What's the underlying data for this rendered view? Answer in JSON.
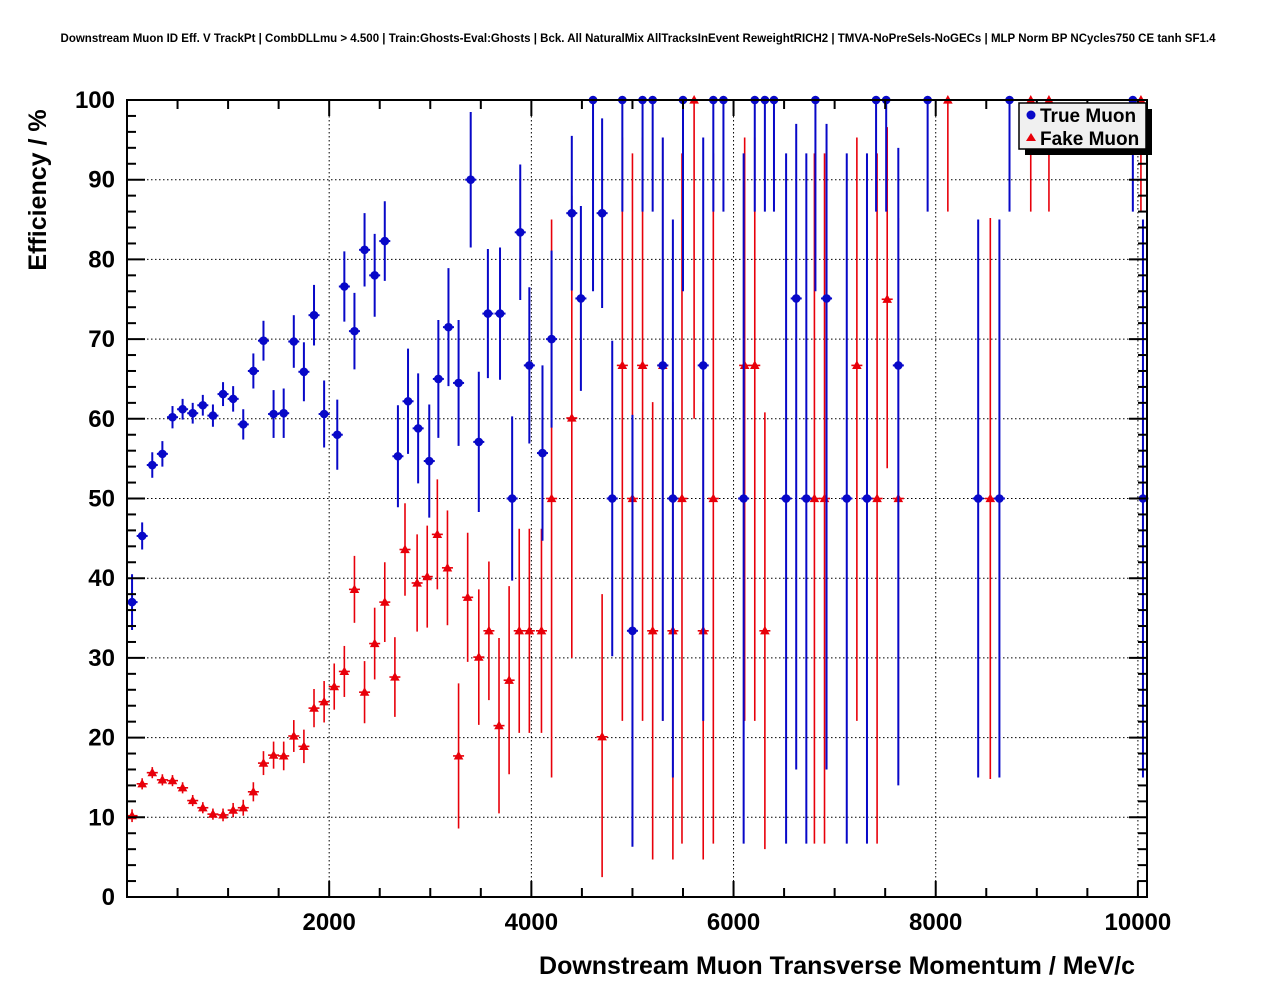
{
  "title": "Downstream Muon ID Eff. V TrackPt | CombDLLmu > 4.500 | Train:Ghosts-Eval:Ghosts | Bck. All NaturalMix AllTracksInEvent ReweightRICH2 | TMVA-NoPreSels-NoGECs | MLP Norm BP NCycles750 CE tanh SF1.4",
  "legend": {
    "items": [
      {
        "label": "True Muon",
        "marker": "circle",
        "color": "#0808c8"
      },
      {
        "label": "Fake Muon",
        "marker": "triangle",
        "color": "#e8000a"
      }
    ]
  },
  "colors": {
    "true_muon": "#0808c8",
    "fake_muon": "#e8000a",
    "axis": "#000000",
    "grid": "#000000",
    "legend_fill": "#f0f0f0",
    "legend_shadow": "#000000",
    "background": "#ffffff"
  },
  "chart_data": {
    "type": "scatter",
    "title": "Downstream Muon ID Eff. V TrackPt | CombDLLmu > 4.500 | Train:Ghosts-Eval:Ghosts | Bck. All NaturalMix AllTracksInEvent ReweightRICH2 | TMVA-NoPreSels-NoGECs | MLP Norm BP NCycles750 CE tanh SF1.4",
    "xlabel": "Downstream Muon Transverse Momentum / MeV/c",
    "ylabel": "Efficiency / %",
    "xlim": [
      0,
      10090
    ],
    "ylim": [
      0,
      100
    ],
    "x_ticks": [
      2000,
      4000,
      6000,
      8000,
      10000
    ],
    "x_minor_step": 500,
    "y_ticks": [
      0,
      10,
      20,
      30,
      40,
      50,
      60,
      70,
      80,
      90,
      100
    ],
    "y_minor_step": 2,
    "grid": true,
    "legend_position": "top-right",
    "series": [
      {
        "name": "Fake Muon",
        "marker": "triangle",
        "color": "#e8000a",
        "points_format": [
          "pt_MeV",
          "efficiency_pct",
          "err_low_pct",
          "err_high_pct"
        ],
        "points": [
          [
            50,
            10.2,
            9.4,
            11.0
          ],
          [
            150,
            14.2,
            13.5,
            14.9
          ],
          [
            250,
            15.6,
            14.9,
            16.3
          ],
          [
            350,
            14.7,
            14.0,
            15.4
          ],
          [
            450,
            14.6,
            13.9,
            15.3
          ],
          [
            550,
            13.7,
            13.0,
            14.4
          ],
          [
            650,
            12.1,
            11.4,
            12.8
          ],
          [
            750,
            11.2,
            10.5,
            11.9
          ],
          [
            850,
            10.4,
            9.7,
            11.1
          ],
          [
            950,
            10.3,
            9.5,
            11.1
          ],
          [
            1050,
            10.9,
            10.0,
            11.8
          ],
          [
            1150,
            11.2,
            10.2,
            12.2
          ],
          [
            1250,
            13.2,
            12.0,
            14.4
          ],
          [
            1350,
            16.8,
            15.3,
            18.3
          ],
          [
            1450,
            17.8,
            16.1,
            19.5
          ],
          [
            1550,
            17.7,
            15.9,
            19.5
          ],
          [
            1650,
            20.2,
            18.2,
            22.2
          ],
          [
            1750,
            18.9,
            16.8,
            21.0
          ],
          [
            1850,
            23.7,
            21.3,
            26.1
          ],
          [
            1950,
            24.5,
            21.9,
            27.1
          ],
          [
            2050,
            26.4,
            23.5,
            29.3
          ],
          [
            2150,
            28.3,
            25.1,
            31.5
          ],
          [
            2250,
            38.6,
            34.4,
            42.8
          ],
          [
            2350,
            25.7,
            21.8,
            29.6
          ],
          [
            2450,
            31.8,
            27.3,
            36.3
          ],
          [
            2550,
            37.0,
            32.0,
            42.0
          ],
          [
            2650,
            27.6,
            22.6,
            32.6
          ],
          [
            2750,
            43.6,
            37.8,
            49.4
          ],
          [
            2870,
            39.4,
            33.3,
            45.5
          ],
          [
            2970,
            40.2,
            33.8,
            46.6
          ],
          [
            3070,
            45.5,
            38.6,
            52.4
          ],
          [
            3170,
            41.3,
            34.1,
            48.5
          ],
          [
            3280,
            17.7,
            8.6,
            26.8
          ],
          [
            3370,
            37.6,
            29.5,
            45.7
          ],
          [
            3480,
            30.1,
            21.6,
            38.6
          ],
          [
            3580,
            33.4,
            24.7,
            42.1
          ],
          [
            3680,
            21.5,
            10.5,
            32.5
          ],
          [
            3780,
            27.2,
            15.4,
            39.0
          ],
          [
            3880,
            33.4,
            20.6,
            46.2
          ],
          [
            3980,
            33.4,
            20.6,
            46.2
          ],
          [
            4100,
            33.4,
            20.6,
            46.2
          ],
          [
            4200,
            50.0,
            15.0,
            85.0
          ],
          [
            4400,
            60.1,
            30.0,
            88.0
          ],
          [
            4700,
            20.1,
            2.5,
            38.0
          ],
          [
            4900,
            66.7,
            22.1,
            95.3
          ],
          [
            5000,
            50.0,
            6.7,
            93.3
          ],
          [
            5100,
            66.7,
            22.1,
            95.3
          ],
          [
            5200,
            33.4,
            4.7,
            62.1
          ],
          [
            5300,
            66.7,
            22.1,
            95.3
          ],
          [
            5400,
            33.4,
            4.7,
            62.1
          ],
          [
            5490,
            50.0,
            6.7,
            93.3
          ],
          [
            5610,
            100,
            60.0,
            100
          ],
          [
            5700,
            33.4,
            4.7,
            62.1
          ],
          [
            5800,
            50.0,
            6.7,
            93.3
          ],
          [
            6110,
            66.7,
            22.1,
            95.3
          ],
          [
            6210,
            66.7,
            22.1,
            95.3
          ],
          [
            6310,
            33.4,
            6.0,
            60.8
          ],
          [
            6800,
            50.0,
            6.7,
            93.3
          ],
          [
            6900,
            50.0,
            6.7,
            93.3
          ],
          [
            7220,
            66.7,
            22.1,
            95.3
          ],
          [
            7420,
            50.0,
            6.7,
            93.3
          ],
          [
            7520,
            75.0,
            53.8,
            96.6
          ],
          [
            7630,
            50.0,
            14.8,
            85.2
          ],
          [
            8120,
            100,
            86.0,
            100
          ],
          [
            8540,
            50.0,
            14.8,
            85.2
          ],
          [
            8940,
            100,
            86.0,
            100
          ],
          [
            9120,
            100,
            86.0,
            100
          ],
          [
            10030,
            100,
            86.0,
            100
          ]
        ]
      },
      {
        "name": "True Muon",
        "marker": "circle",
        "color": "#0808c8",
        "points_format": [
          "pt_MeV",
          "efficiency_pct",
          "err_low_pct",
          "err_high_pct"
        ],
        "points": [
          [
            50,
            37.0,
            33.5,
            40.5
          ],
          [
            150,
            45.3,
            43.6,
            47.0
          ],
          [
            250,
            54.2,
            52.6,
            55.8
          ],
          [
            350,
            55.6,
            54.0,
            57.2
          ],
          [
            450,
            60.2,
            58.8,
            61.6
          ],
          [
            550,
            61.2,
            59.9,
            62.5
          ],
          [
            650,
            60.7,
            59.4,
            62.0
          ],
          [
            750,
            61.7,
            60.4,
            63.0
          ],
          [
            850,
            60.4,
            59.0,
            61.8
          ],
          [
            950,
            63.1,
            61.6,
            64.6
          ],
          [
            1050,
            62.5,
            60.9,
            64.1
          ],
          [
            1150,
            59.3,
            57.4,
            61.2
          ],
          [
            1250,
            66.0,
            63.8,
            68.2
          ],
          [
            1350,
            69.8,
            67.3,
            72.3
          ],
          [
            1450,
            60.6,
            57.6,
            63.6
          ],
          [
            1550,
            60.7,
            57.6,
            63.8
          ],
          [
            1650,
            69.7,
            66.4,
            73.0
          ],
          [
            1750,
            65.9,
            62.2,
            69.6
          ],
          [
            1850,
            73.0,
            69.2,
            76.8
          ],
          [
            1950,
            60.6,
            56.4,
            64.8
          ],
          [
            2080,
            58.0,
            53.6,
            62.4
          ],
          [
            2150,
            76.6,
            72.2,
            81.0
          ],
          [
            2250,
            71.0,
            66.2,
            75.8
          ],
          [
            2350,
            81.2,
            76.6,
            85.8
          ],
          [
            2450,
            78.0,
            72.8,
            83.2
          ],
          [
            2550,
            82.3,
            77.3,
            87.3
          ],
          [
            2680,
            55.3,
            48.9,
            61.7
          ],
          [
            2780,
            62.2,
            55.6,
            68.8
          ],
          [
            2880,
            58.8,
            51.9,
            65.7
          ],
          [
            2990,
            54.7,
            47.6,
            61.8
          ],
          [
            3080,
            65.0,
            57.6,
            72.4
          ],
          [
            3180,
            71.5,
            64.1,
            78.9
          ],
          [
            3280,
            64.5,
            56.6,
            72.4
          ],
          [
            3400,
            90.0,
            81.5,
            98.5
          ],
          [
            3480,
            57.1,
            48.3,
            65.9
          ],
          [
            3570,
            73.2,
            65.1,
            81.3
          ],
          [
            3690,
            73.2,
            64.9,
            81.5
          ],
          [
            3810,
            50.0,
            39.7,
            60.3
          ],
          [
            3890,
            83.4,
            74.9,
            91.9
          ],
          [
            3980,
            66.7,
            56.9,
            76.5
          ],
          [
            4110,
            55.7,
            44.7,
            66.7
          ],
          [
            4200,
            70.0,
            58.9,
            81.1
          ],
          [
            4400,
            85.8,
            76.1,
            95.5
          ],
          [
            4490,
            75.1,
            63.5,
            86.7
          ],
          [
            4610,
            100,
            76.0,
            100
          ],
          [
            4700,
            85.8,
            73.9,
            97.7
          ],
          [
            4800,
            50.0,
            30.2,
            69.8
          ],
          [
            4900,
            100,
            86.0,
            100
          ],
          [
            5000,
            33.4,
            6.3,
            60.5
          ],
          [
            5100,
            100,
            86.0,
            100
          ],
          [
            5200,
            100,
            86.0,
            100
          ],
          [
            5300,
            66.7,
            22.1,
            95.3
          ],
          [
            5400,
            50.0,
            15.0,
            85.0
          ],
          [
            5500,
            100,
            76.0,
            100
          ],
          [
            5700,
            66.7,
            22.1,
            95.3
          ],
          [
            5800,
            100,
            86.0,
            100
          ],
          [
            5900,
            100,
            86.0,
            100
          ],
          [
            6100,
            50.0,
            6.7,
            93.3
          ],
          [
            6210,
            100,
            86.0,
            100
          ],
          [
            6310,
            100,
            86.0,
            100
          ],
          [
            6400,
            100,
            86.0,
            100
          ],
          [
            6520,
            50.0,
            6.7,
            93.3
          ],
          [
            6620,
            75.1,
            16.0,
            97.0
          ],
          [
            6720,
            50.0,
            6.7,
            93.3
          ],
          [
            6810,
            100,
            76.0,
            100
          ],
          [
            6920,
            75.1,
            16.0,
            97.0
          ],
          [
            7120,
            50.0,
            6.7,
            93.3
          ],
          [
            7320,
            50.0,
            6.7,
            93.3
          ],
          [
            7410,
            100,
            86.0,
            100
          ],
          [
            7510,
            100,
            86.0,
            100
          ],
          [
            7630,
            66.7,
            14.0,
            94.0
          ],
          [
            7920,
            100,
            86.0,
            100
          ],
          [
            8420,
            50.0,
            15.0,
            85.0
          ],
          [
            8630,
            50.0,
            15.0,
            85.0
          ],
          [
            8730,
            100,
            86.0,
            100
          ],
          [
            9950,
            100,
            86.0,
            100
          ],
          [
            10050,
            50.0,
            15.0,
            85.0
          ]
        ]
      }
    ]
  }
}
